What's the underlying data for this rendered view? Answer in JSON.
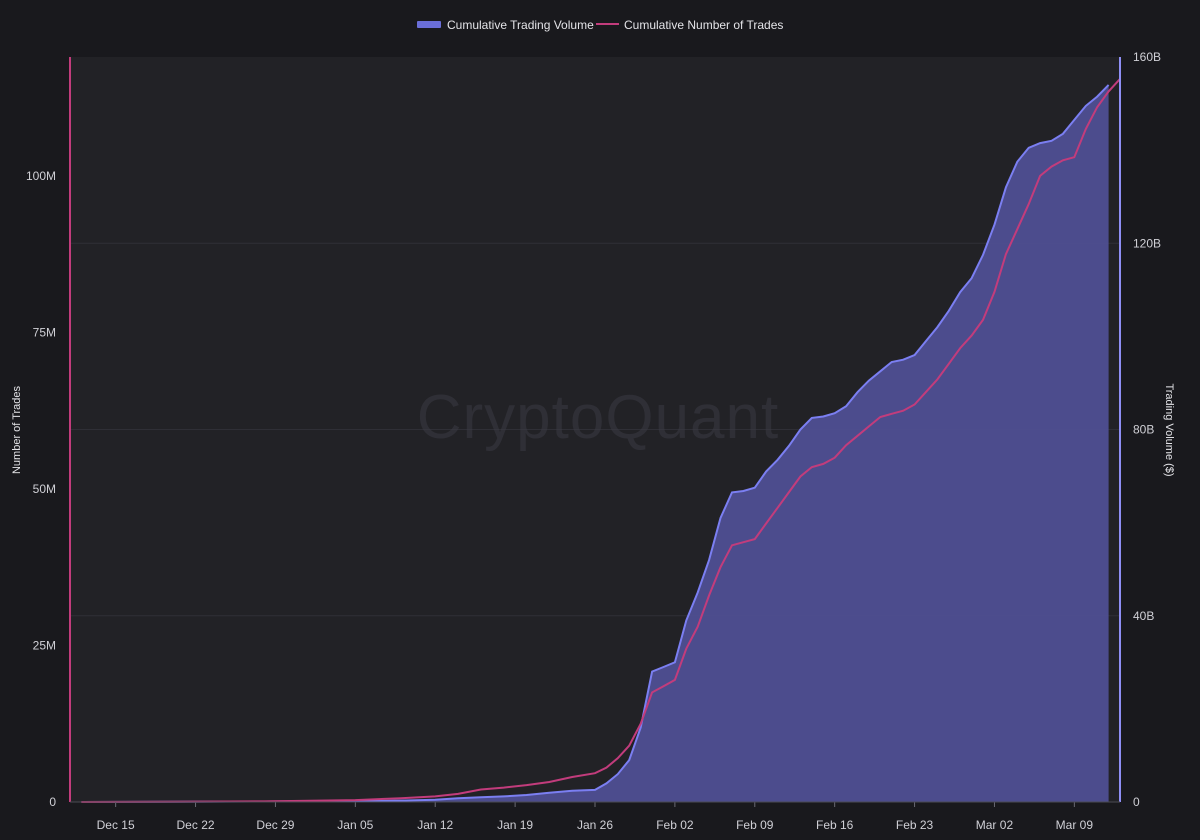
{
  "watermark": "CryptoQuant",
  "colors": {
    "background": "#19191d",
    "plot_background": "#222226",
    "grid": "#2f2f36",
    "volume_line": "#7b7ff2",
    "volume_fill": "#4f4f92",
    "trades_line": "#c23c7c",
    "left_axis": "#c23c7c",
    "right_axis": "#8f8ff5"
  },
  "legend": [
    {
      "label": "Cumulative Trading Volume",
      "series": "volume"
    },
    {
      "label": "Cumulative Number of Trades",
      "series": "trades"
    }
  ],
  "chart_data": {
    "type": "area",
    "x_tick_labels": [
      "Dec 15",
      "Dec 22",
      "Dec 29",
      "Jan 05",
      "Jan 12",
      "Jan 19",
      "Jan 26",
      "Feb 02",
      "Feb 09",
      "Feb 16",
      "Feb 23",
      "Mar 02",
      "Mar 09"
    ],
    "x_start": "2024-12-11",
    "x_end": "2025-03-13",
    "left_axis": {
      "label": "Number of Trades",
      "range": [
        0,
        119000000
      ],
      "ticks": [
        0,
        25000000,
        50000000,
        75000000,
        100000000
      ],
      "tick_labels": [
        "0",
        "25M",
        "50M",
        "75M",
        "100M"
      ]
    },
    "right_axis": {
      "label": "Trading Volume ($)",
      "range": [
        0,
        160000000000
      ],
      "ticks": [
        0,
        40000000000,
        80000000000,
        120000000000,
        160000000000
      ],
      "tick_labels": [
        "0",
        "40B",
        "80B",
        "120B",
        "160B"
      ]
    },
    "grid": true,
    "legend_position": "top-center",
    "series": [
      {
        "name": "Cumulative Trading Volume",
        "axis": "right",
        "style": "area",
        "points": [
          [
            "2024-12-12",
            0
          ],
          [
            "2024-12-20",
            0.05
          ],
          [
            "2024-12-28",
            0.1
          ],
          [
            "2025-01-05",
            0.2
          ],
          [
            "2025-01-09",
            0.3
          ],
          [
            "2025-01-12",
            0.5
          ],
          [
            "2025-01-14",
            0.8
          ],
          [
            "2025-01-16",
            1.0
          ],
          [
            "2025-01-18",
            1.2
          ],
          [
            "2025-01-20",
            1.5
          ],
          [
            "2025-01-22",
            2.0
          ],
          [
            "2025-01-24",
            2.4
          ],
          [
            "2025-01-26",
            2.6
          ],
          [
            "2025-01-27",
            4.0
          ],
          [
            "2025-01-28",
            6.0
          ],
          [
            "2025-01-29",
            9.0
          ],
          [
            "2025-01-30",
            16.0
          ],
          [
            "2025-01-31",
            28.0
          ],
          [
            "2025-02-01",
            29.0
          ],
          [
            "2025-02-02",
            30.0
          ],
          [
            "2025-02-03",
            39.0
          ],
          [
            "2025-02-04",
            45.0
          ],
          [
            "2025-02-05",
            52.0
          ],
          [
            "2025-02-06",
            61.0
          ],
          [
            "2025-02-07",
            66.5
          ],
          [
            "2025-02-08",
            66.8
          ],
          [
            "2025-02-09",
            67.5
          ],
          [
            "2025-02-10",
            71.0
          ],
          [
            "2025-02-11",
            73.5
          ],
          [
            "2025-02-12",
            76.5
          ],
          [
            "2025-02-13",
            80.0
          ],
          [
            "2025-02-14",
            82.5
          ],
          [
            "2025-02-15",
            82.8
          ],
          [
            "2025-02-16",
            83.5
          ],
          [
            "2025-02-17",
            85.0
          ],
          [
            "2025-02-18",
            88.0
          ],
          [
            "2025-02-19",
            90.5
          ],
          [
            "2025-02-20",
            92.5
          ],
          [
            "2025-02-21",
            94.5
          ],
          [
            "2025-02-22",
            95.0
          ],
          [
            "2025-02-23",
            96.0
          ],
          [
            "2025-02-24",
            99.0
          ],
          [
            "2025-02-25",
            102.0
          ],
          [
            "2025-02-26",
            105.5
          ],
          [
            "2025-02-27",
            109.5
          ],
          [
            "2025-02-28",
            112.5
          ],
          [
            "2025-03-01",
            117.5
          ],
          [
            "2025-03-02",
            124.0
          ],
          [
            "2025-03-03",
            132.0
          ],
          [
            "2025-03-04",
            137.5
          ],
          [
            "2025-03-05",
            140.5
          ],
          [
            "2025-03-06",
            141.5
          ],
          [
            "2025-03-07",
            142.0
          ],
          [
            "2025-03-08",
            143.5
          ],
          [
            "2025-03-09",
            146.5
          ],
          [
            "2025-03-10",
            149.5
          ],
          [
            "2025-03-11",
            151.5
          ],
          [
            "2025-03-12",
            154.0
          ]
        ],
        "units": "billion USD"
      },
      {
        "name": "Cumulative Number of Trades",
        "axis": "left",
        "style": "line",
        "points": [
          [
            "2024-12-12",
            0
          ],
          [
            "2024-12-20",
            0.05
          ],
          [
            "2024-12-28",
            0.1
          ],
          [
            "2025-01-05",
            0.3
          ],
          [
            "2025-01-09",
            0.6
          ],
          [
            "2025-01-12",
            0.9
          ],
          [
            "2025-01-14",
            1.3
          ],
          [
            "2025-01-16",
            2.0
          ],
          [
            "2025-01-18",
            2.3
          ],
          [
            "2025-01-20",
            2.7
          ],
          [
            "2025-01-22",
            3.2
          ],
          [
            "2025-01-24",
            4.0
          ],
          [
            "2025-01-26",
            4.6
          ],
          [
            "2025-01-27",
            5.5
          ],
          [
            "2025-01-28",
            7.0
          ],
          [
            "2025-01-29",
            9.0
          ],
          [
            "2025-01-30",
            12.5
          ],
          [
            "2025-01-31",
            17.5
          ],
          [
            "2025-02-01",
            18.5
          ],
          [
            "2025-02-02",
            19.5
          ],
          [
            "2025-02-03",
            24.5
          ],
          [
            "2025-02-04",
            28.0
          ],
          [
            "2025-02-05",
            33.0
          ],
          [
            "2025-02-06",
            37.5
          ],
          [
            "2025-02-07",
            41.0
          ],
          [
            "2025-02-08",
            41.5
          ],
          [
            "2025-02-09",
            42.0
          ],
          [
            "2025-02-10",
            44.5
          ],
          [
            "2025-02-11",
            47.0
          ],
          [
            "2025-02-12",
            49.5
          ],
          [
            "2025-02-13",
            52.0
          ],
          [
            "2025-02-14",
            53.5
          ],
          [
            "2025-02-15",
            54.0
          ],
          [
            "2025-02-16",
            55.0
          ],
          [
            "2025-02-17",
            57.0
          ],
          [
            "2025-02-18",
            58.5
          ],
          [
            "2025-02-19",
            60.0
          ],
          [
            "2025-02-20",
            61.5
          ],
          [
            "2025-02-21",
            62.0
          ],
          [
            "2025-02-22",
            62.5
          ],
          [
            "2025-02-23",
            63.5
          ],
          [
            "2025-02-24",
            65.5
          ],
          [
            "2025-02-25",
            67.5
          ],
          [
            "2025-02-26",
            70.0
          ],
          [
            "2025-02-27",
            72.5
          ],
          [
            "2025-02-28",
            74.5
          ],
          [
            "2025-03-01",
            77.0
          ],
          [
            "2025-03-02",
            81.5
          ],
          [
            "2025-03-03",
            87.5
          ],
          [
            "2025-03-04",
            91.5
          ],
          [
            "2025-03-05",
            95.5
          ],
          [
            "2025-03-06",
            100.0
          ],
          [
            "2025-03-07",
            101.5
          ],
          [
            "2025-03-08",
            102.5
          ],
          [
            "2025-03-09",
            103.0
          ],
          [
            "2025-03-10",
            107.5
          ],
          [
            "2025-03-11",
            111.0
          ],
          [
            "2025-03-12",
            113.5
          ],
          [
            "2025-03-13",
            115.5
          ]
        ],
        "units": "million trades"
      }
    ]
  }
}
